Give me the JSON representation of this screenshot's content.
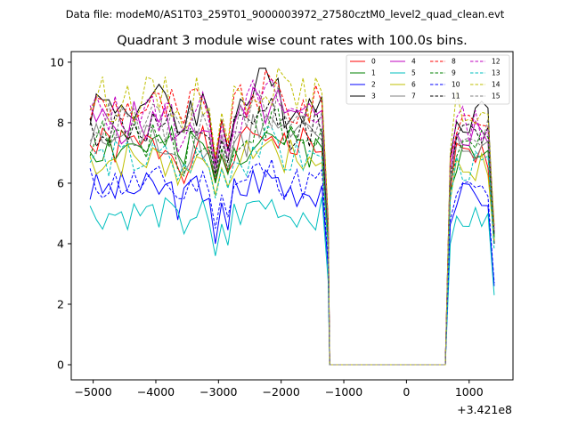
{
  "chart_data": {
    "type": "line",
    "suptitle": "Data file: modeM0/AS1T03_259T01_9000003972_27580cztM0_level2_quad_clean.evt",
    "title": "Quadrant 3 module wise count rates with 100.0s bins.",
    "xlabel": "",
    "ylabel": "",
    "x_offset_label": "+3.421e8",
    "xlim": [
      -5350,
      1700
    ],
    "ylim": [
      -0.5,
      10.35
    ],
    "x_ticks": [
      -5000,
      -4000,
      -3000,
      -2000,
      -1000,
      0,
      1000
    ],
    "x_tick_labels": [
      "−5000",
      "−4000",
      "−3000",
      "−2000",
      "−1000",
      "0",
      "1000"
    ],
    "y_ticks": [
      0,
      2,
      4,
      6,
      8,
      10
    ],
    "y_tick_labels": [
      "0",
      "2",
      "4",
      "6",
      "8",
      "10"
    ],
    "legend_position": "top-right",
    "legend_columns": 4,
    "gap": {
      "start": -1225,
      "end": 620
    },
    "series": [
      {
        "name": "0",
        "color": "#ff0000",
        "dashed": false,
        "level": 7.2,
        "dip": 6.1,
        "end": 4.0,
        "seed": 1
      },
      {
        "name": "1",
        "color": "#008000",
        "dashed": false,
        "level": 7.2,
        "dip": 6.0,
        "end": 4.2,
        "seed": 2
      },
      {
        "name": "2",
        "color": "#0000ff",
        "dashed": false,
        "level": 5.8,
        "dip": 4.0,
        "end": 2.6,
        "seed": 3
      },
      {
        "name": "3",
        "color": "#000000",
        "dashed": false,
        "level": 8.6,
        "dip": 6.6,
        "end": 4.0,
        "seed": 4
      },
      {
        "name": "4",
        "color": "#bf00bf",
        "dashed": false,
        "level": 8.0,
        "dip": 6.4,
        "end": 4.4,
        "seed": 5
      },
      {
        "name": "5",
        "color": "#00bfbf",
        "dashed": false,
        "level": 5.0,
        "dip": 3.6,
        "end": 2.3,
        "seed": 6
      },
      {
        "name": "6",
        "color": "#bfbf00",
        "dashed": false,
        "level": 6.8,
        "dip": 5.6,
        "end": 4.1,
        "seed": 7
      },
      {
        "name": "7",
        "color": "#808080",
        "dashed": false,
        "level": 7.4,
        "dip": 6.2,
        "end": 4.3,
        "seed": 8
      },
      {
        "name": "8",
        "color": "#ff0000",
        "dashed": true,
        "level": 8.5,
        "dip": 6.8,
        "end": 4.6,
        "seed": 9
      },
      {
        "name": "9",
        "color": "#008000",
        "dashed": true,
        "level": 7.5,
        "dip": 6.1,
        "end": 4.2,
        "seed": 10
      },
      {
        "name": "10",
        "color": "#0000ff",
        "dashed": true,
        "level": 6.0,
        "dip": 4.5,
        "end": 2.7,
        "seed": 11
      },
      {
        "name": "11",
        "color": "#000000",
        "dashed": true,
        "level": 7.8,
        "dip": 6.3,
        "end": 4.3,
        "seed": 12
      },
      {
        "name": "12",
        "color": "#bf00bf",
        "dashed": true,
        "level": 8.3,
        "dip": 6.6,
        "end": 4.5,
        "seed": 13
      },
      {
        "name": "13",
        "color": "#00bfbf",
        "dashed": true,
        "level": 6.8,
        "dip": 5.5,
        "end": 3.8,
        "seed": 14
      },
      {
        "name": "14",
        "color": "#bfbf00",
        "dashed": true,
        "level": 8.8,
        "dip": 6.9,
        "end": 4.6,
        "seed": 15
      },
      {
        "name": "15",
        "color": "#808080",
        "dashed": true,
        "level": 8.0,
        "dip": 6.4,
        "end": 4.4,
        "seed": 16
      }
    ]
  }
}
